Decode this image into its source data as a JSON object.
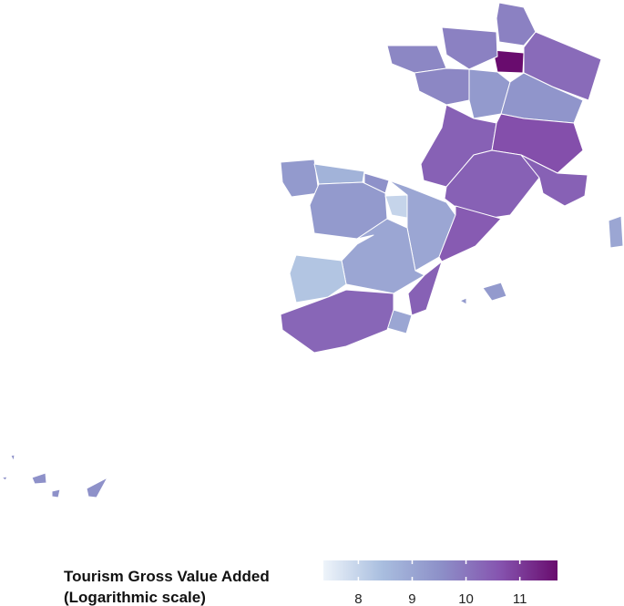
{
  "map": {
    "type": "choropleth",
    "values": [
      9.8,
      11.7,
      10.2,
      9.8,
      9.7,
      9.7,
      9.3,
      9.4,
      10.4,
      10.7,
      10.4,
      10.4,
      9.0,
      9.3,
      8.7,
      9.5,
      9.3,
      8.0,
      9.0,
      10.5,
      10.8,
      9.0,
      8.3,
      10.4,
      9.0,
      10.3,
      9.3,
      9.5
    ]
  },
  "legend": {
    "title": [
      "Tourism Gross Value Added",
      "(Logarithmic scale)"
    ],
    "lim": [
      7.35,
      11.7
    ],
    "ticks": [
      8,
      9,
      10,
      11
    ],
    "colors": [
      "#eef4fa",
      "#a9bedf",
      "#8d90c8",
      "#8655b0",
      "#690c6e"
    ]
  }
}
